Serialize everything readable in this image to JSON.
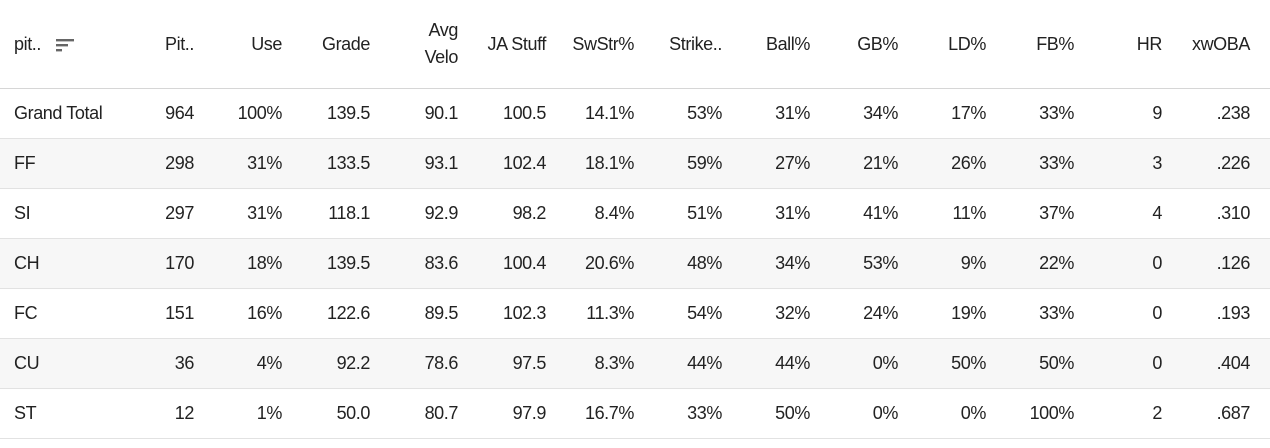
{
  "table": {
    "columns": [
      "pit..",
      "Pit..",
      "Use",
      "Grade",
      "Avg Velo",
      "JA Stuff",
      "SwStr%",
      "Strike..",
      "Ball%",
      "GB%",
      "LD%",
      "FB%",
      "HR",
      "xwOBA"
    ],
    "rows": [
      [
        "Grand Total",
        "964",
        "100%",
        "139.5",
        "90.1",
        "100.5",
        "14.1%",
        "53%",
        "31%",
        "34%",
        "17%",
        "33%",
        "9",
        ".238"
      ],
      [
        "FF",
        "298",
        "31%",
        "133.5",
        "93.1",
        "102.4",
        "18.1%",
        "59%",
        "27%",
        "21%",
        "26%",
        "33%",
        "3",
        ".226"
      ],
      [
        "SI",
        "297",
        "31%",
        "118.1",
        "92.9",
        "98.2",
        "8.4%",
        "51%",
        "31%",
        "41%",
        "11%",
        "37%",
        "4",
        ".310"
      ],
      [
        "CH",
        "170",
        "18%",
        "139.5",
        "83.6",
        "100.4",
        "20.6%",
        "48%",
        "34%",
        "53%",
        "9%",
        "22%",
        "0",
        ".126"
      ],
      [
        "FC",
        "151",
        "16%",
        "122.6",
        "89.5",
        "102.3",
        "11.3%",
        "54%",
        "32%",
        "24%",
        "19%",
        "33%",
        "0",
        ".193"
      ],
      [
        "CU",
        "36",
        "4%",
        "92.2",
        "78.6",
        "97.5",
        "8.3%",
        "44%",
        "44%",
        "0%",
        "50%",
        "50%",
        "0",
        ".404"
      ],
      [
        "ST",
        "12",
        "1%",
        "50.0",
        "80.7",
        "97.9",
        "16.7%",
        "33%",
        "50%",
        "0%",
        "0%",
        "100%",
        "2",
        ".687"
      ]
    ]
  }
}
